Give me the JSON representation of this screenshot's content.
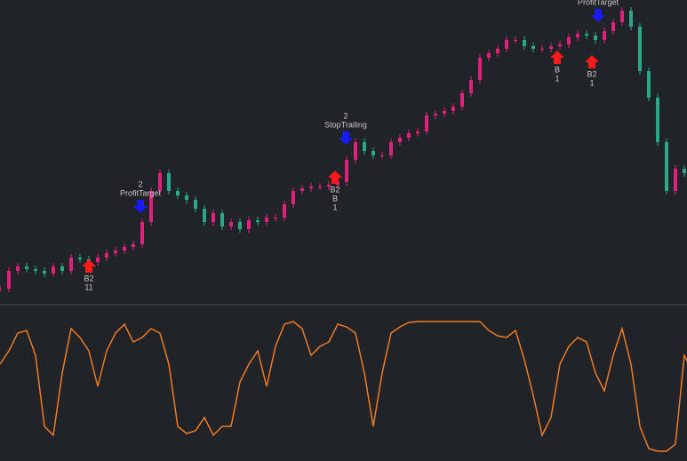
{
  "chart_data": [
    {
      "type": "candle-line",
      "up_color": "#e0207a",
      "down_color": "#2aa889",
      "ylim": [
        0,
        340
      ],
      "values": [
        15,
        35,
        40,
        37,
        35,
        32,
        40,
        35,
        50,
        48,
        45,
        50,
        55,
        58,
        62,
        65,
        90,
        125,
        145,
        125,
        120,
        115,
        105,
        90,
        100,
        85,
        90,
        82,
        92,
        90,
        95,
        95,
        110,
        125,
        128,
        130,
        130,
        132,
        135,
        160,
        180,
        170,
        165,
        165,
        180,
        185,
        190,
        192,
        210,
        212,
        215,
        220,
        235,
        250,
        275,
        280,
        285,
        295,
        295,
        288,
        285,
        285,
        288,
        290,
        298,
        302,
        300,
        295,
        305,
        315,
        328,
        310,
        260,
        230,
        180,
        125,
        150,
        145,
        135
      ],
      "markers": [
        {
          "index": 10,
          "price": 40,
          "color": "#ff1a1a",
          "direction": "up",
          "labels": [
            "B2",
            "11"
          ]
        },
        {
          "index": 15.8,
          "price": 108,
          "color": "#1a1aff",
          "direction": "down",
          "labels": [
            "2",
            "ProfitTarget"
          ]
        },
        {
          "index": 37.7,
          "price": 140,
          "color": "#ff1a1a",
          "direction": "up",
          "labels": [
            "B2",
            "B",
            "1"
          ]
        },
        {
          "index": 38.9,
          "price": 185,
          "color": "#1a1aff",
          "direction": "down",
          "labels": [
            "2",
            "StopTrailing"
          ]
        },
        {
          "index": 62.7,
          "price": 275,
          "color": "#ff1a1a",
          "direction": "up",
          "labels": [
            "B",
            "1"
          ]
        },
        {
          "index": 66.6,
          "price": 270,
          "color": "#ff1a1a",
          "direction": "up",
          "labels": [
            "B2",
            "1"
          ]
        },
        {
          "index": 67.3,
          "price": 323,
          "color": "#1a1aff",
          "direction": "down",
          "labels": [
            "ProfitTarget"
          ]
        }
      ]
    },
    {
      "type": "line",
      "color": "#f07a22",
      "ylim": [
        0,
        174
      ],
      "values": [
        109,
        124,
        144,
        147,
        119,
        39,
        29,
        99,
        149,
        139,
        124,
        84,
        124,
        144,
        154,
        134,
        139,
        149,
        144,
        109,
        39,
        31,
        34,
        49,
        29,
        39,
        39,
        89,
        109,
        124,
        84,
        129,
        154,
        157,
        149,
        119,
        129,
        134,
        154,
        151,
        144,
        99,
        39,
        99,
        144,
        151,
        156,
        157,
        157,
        157,
        157,
        157,
        157,
        157,
        157,
        147,
        141,
        139,
        147,
        114,
        74,
        29,
        49,
        109,
        129,
        139,
        134,
        99,
        79,
        119,
        149,
        109,
        39,
        14,
        11,
        11,
        19,
        119,
        99
      ]
    }
  ]
}
